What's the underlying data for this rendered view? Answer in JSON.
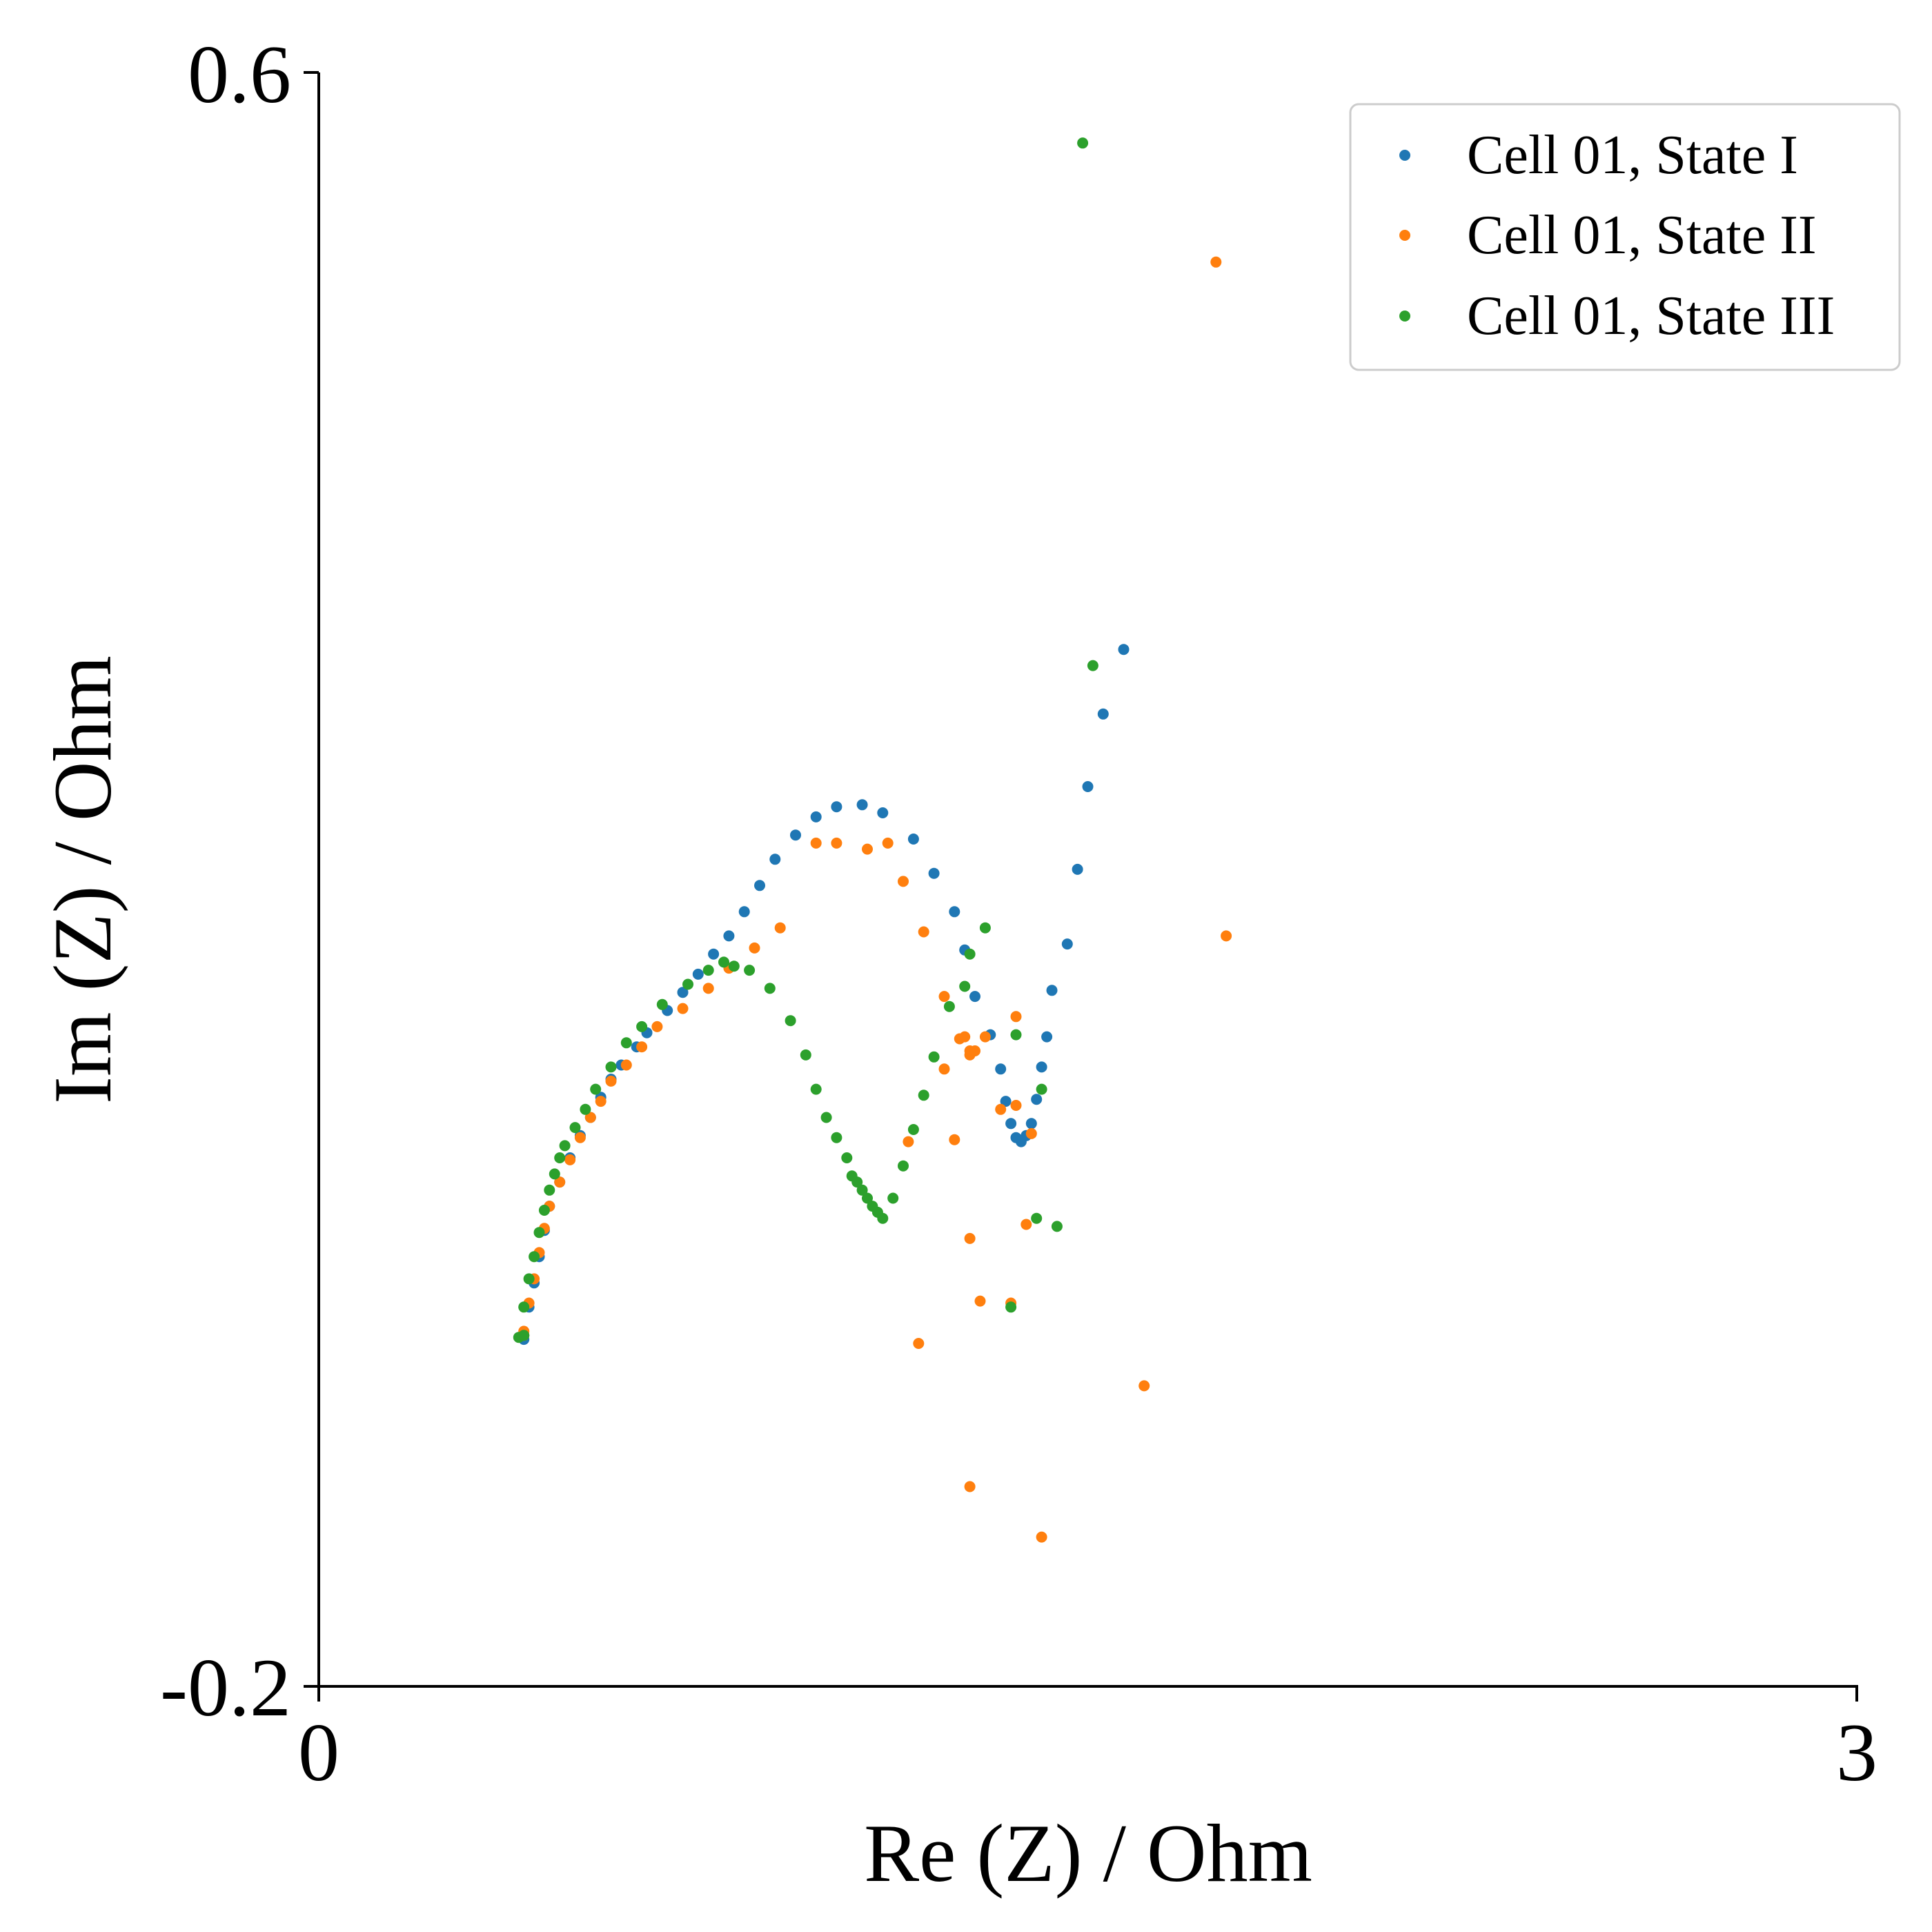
{
  "chart_data": {
    "type": "scatter",
    "xlabel": "Re (Z) / Ohm",
    "ylabel": "Im (Z) / Ohm",
    "xlim": [
      0,
      3
    ],
    "ylim": [
      -0.2,
      0.6
    ],
    "xticks": [
      "0",
      "3"
    ],
    "yticks": [
      "-0.2",
      "0.6"
    ],
    "grid": false,
    "legend_position": "top-right",
    "series": [
      {
        "name": "Cell 01, State I",
        "color": "#1f77b4",
        "points": [
          [
            0.4,
            -0.028
          ],
          [
            0.4,
            -0.026
          ],
          [
            0.41,
            -0.012
          ],
          [
            0.42,
            0.0
          ],
          [
            0.43,
            0.013
          ],
          [
            0.44,
            0.026
          ],
          [
            0.45,
            0.038
          ],
          [
            0.47,
            0.05
          ],
          [
            0.49,
            0.062
          ],
          [
            0.51,
            0.073
          ],
          [
            0.53,
            0.082
          ],
          [
            0.55,
            0.092
          ],
          [
            0.57,
            0.101
          ],
          [
            0.59,
            0.108
          ],
          [
            0.62,
            0.117
          ],
          [
            0.64,
            0.124
          ],
          [
            0.68,
            0.135
          ],
          [
            0.71,
            0.144
          ],
          [
            0.74,
            0.153
          ],
          [
            0.77,
            0.163
          ],
          [
            0.8,
            0.172
          ],
          [
            0.83,
            0.184
          ],
          [
            0.86,
            0.197
          ],
          [
            0.89,
            0.21
          ],
          [
            0.93,
            0.222
          ],
          [
            0.97,
            0.231
          ],
          [
            1.01,
            0.236
          ],
          [
            1.06,
            0.237
          ],
          [
            1.1,
            0.233
          ],
          [
            1.16,
            0.22
          ],
          [
            1.2,
            0.203
          ],
          [
            1.24,
            0.184
          ],
          [
            1.26,
            0.165
          ],
          [
            1.28,
            0.142
          ],
          [
            1.31,
            0.123
          ],
          [
            1.33,
            0.106
          ],
          [
            1.34,
            0.09
          ],
          [
            1.35,
            0.079
          ],
          [
            1.36,
            0.072
          ],
          [
            1.37,
            0.07
          ],
          [
            1.38,
            0.073
          ],
          [
            1.39,
            0.079
          ],
          [
            1.4,
            0.091
          ],
          [
            1.41,
            0.107
          ],
          [
            1.42,
            0.122
          ],
          [
            1.43,
            0.145
          ],
          [
            1.46,
            0.168
          ],
          [
            1.48,
            0.205
          ],
          [
            1.5,
            0.246
          ],
          [
            1.53,
            0.282
          ],
          [
            1.57,
            0.314
          ]
        ]
      },
      {
        "name": "Cell 01, State II",
        "color": "#ff7f0e",
        "points": [
          [
            0.4,
            -0.026
          ],
          [
            0.4,
            -0.024
          ],
          [
            0.41,
            -0.01
          ],
          [
            0.42,
            0.002
          ],
          [
            0.43,
            0.015
          ],
          [
            0.44,
            0.027
          ],
          [
            0.45,
            0.038
          ],
          [
            0.47,
            0.05
          ],
          [
            0.49,
            0.061
          ],
          [
            0.51,
            0.072
          ],
          [
            0.53,
            0.082
          ],
          [
            0.55,
            0.09
          ],
          [
            0.57,
            0.1
          ],
          [
            0.6,
            0.108
          ],
          [
            0.63,
            0.117
          ],
          [
            0.66,
            0.127
          ],
          [
            0.71,
            0.136
          ],
          [
            0.76,
            0.146
          ],
          [
            0.8,
            0.156
          ],
          [
            0.85,
            0.166
          ],
          [
            0.9,
            0.176
          ],
          [
            0.97,
            0.218
          ],
          [
            1.01,
            0.218
          ],
          [
            1.07,
            0.215
          ],
          [
            1.11,
            0.218
          ],
          [
            1.14,
            0.199
          ],
          [
            1.18,
            0.174
          ],
          [
            1.22,
            0.142
          ],
          [
            1.26,
            0.122
          ],
          [
            1.25,
            0.121
          ],
          [
            1.27,
            0.115
          ],
          [
            1.27,
            0.113
          ],
          [
            1.28,
            0.115
          ],
          [
            1.3,
            0.122
          ],
          [
            1.36,
            0.132
          ],
          [
            1.22,
            0.106
          ],
          [
            1.33,
            0.086
          ],
          [
            1.39,
            0.074
          ],
          [
            1.15,
            0.07
          ],
          [
            1.24,
            0.071
          ],
          [
            1.36,
            0.088
          ],
          [
            1.27,
            0.022
          ],
          [
            1.38,
            0.029
          ],
          [
            1.29,
            -0.009
          ],
          [
            1.35,
            -0.01
          ],
          [
            1.17,
            -0.03
          ],
          [
            1.61,
            -0.051
          ],
          [
            1.27,
            -0.101
          ],
          [
            1.41,
            -0.126
          ],
          [
            1.75,
            0.506
          ],
          [
            1.77,
            0.172
          ]
        ]
      },
      {
        "name": "Cell 01, State III",
        "color": "#2ca02c",
        "points": [
          [
            0.39,
            -0.027
          ],
          [
            0.4,
            -0.026
          ],
          [
            0.4,
            -0.012
          ],
          [
            0.41,
            0.002
          ],
          [
            0.42,
            0.013
          ],
          [
            0.43,
            0.025
          ],
          [
            0.44,
            0.036
          ],
          [
            0.45,
            0.046
          ],
          [
            0.46,
            0.054
          ],
          [
            0.47,
            0.062
          ],
          [
            0.48,
            0.068
          ],
          [
            0.5,
            0.077
          ],
          [
            0.52,
            0.086
          ],
          [
            0.54,
            0.096
          ],
          [
            0.57,
            0.107
          ],
          [
            0.6,
            0.119
          ],
          [
            0.63,
            0.127
          ],
          [
            0.67,
            0.138
          ],
          [
            0.72,
            0.148
          ],
          [
            0.76,
            0.155
          ],
          [
            0.79,
            0.159
          ],
          [
            0.81,
            0.157
          ],
          [
            0.84,
            0.155
          ],
          [
            0.88,
            0.146
          ],
          [
            0.92,
            0.13
          ],
          [
            0.95,
            0.113
          ],
          [
            0.97,
            0.096
          ],
          [
            0.99,
            0.082
          ],
          [
            1.01,
            0.072
          ],
          [
            1.03,
            0.062
          ],
          [
            1.04,
            0.053
          ],
          [
            1.05,
            0.05
          ],
          [
            1.06,
            0.046
          ],
          [
            1.07,
            0.042
          ],
          [
            1.08,
            0.038
          ],
          [
            1.09,
            0.035
          ],
          [
            1.1,
            0.032
          ],
          [
            1.12,
            0.042
          ],
          [
            1.14,
            0.058
          ],
          [
            1.16,
            0.076
          ],
          [
            1.18,
            0.093
          ],
          [
            1.2,
            0.112
          ],
          [
            1.23,
            0.137
          ],
          [
            1.26,
            0.147
          ],
          [
            1.27,
            0.163
          ],
          [
            1.3,
            0.176
          ],
          [
            1.36,
            0.123
          ],
          [
            1.41,
            0.096
          ],
          [
            1.4,
            0.032
          ],
          [
            1.35,
            -0.012
          ],
          [
            1.44,
            0.028
          ],
          [
            1.49,
            0.565
          ],
          [
            1.51,
            0.306
          ]
        ]
      }
    ]
  }
}
